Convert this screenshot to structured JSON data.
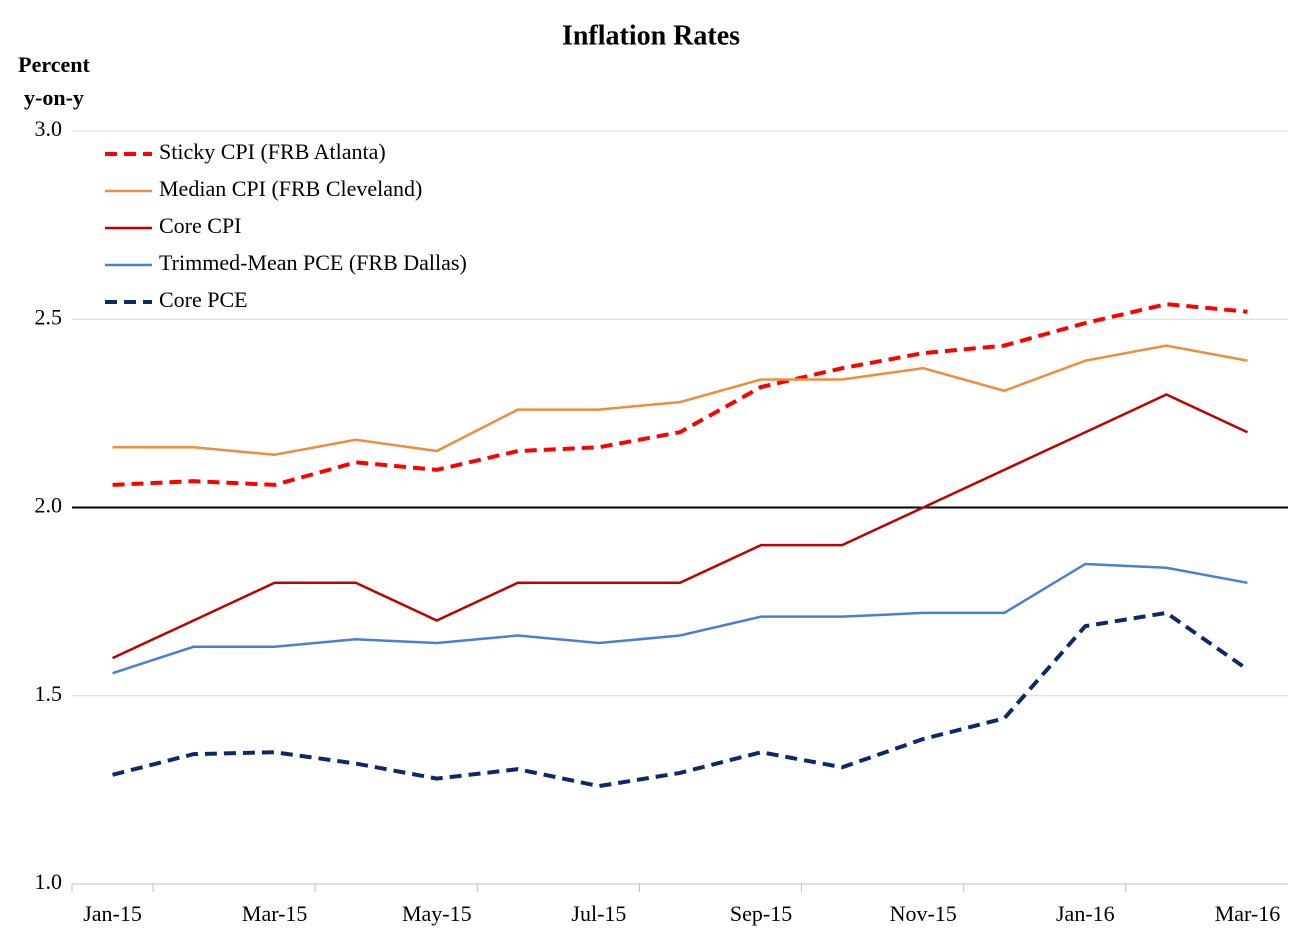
{
  "chart_data": {
    "type": "line",
    "title": "Inflation Rates",
    "y_label": [
      "Percent",
      "y-on-y"
    ],
    "categories": [
      "Jan-15",
      null,
      "Mar-15",
      null,
      "May-15",
      null,
      "Jul-15",
      null,
      "Sep-15",
      null,
      "Nov-15",
      null,
      "Jan-16",
      null,
      "Mar-16"
    ],
    "series": [
      {
        "name": "Sticky CPI (FRB Atlanta)",
        "color": "#ff0000",
        "dashed": true,
        "values": [
          2.06,
          2.07,
          2.06,
          2.12,
          2.1,
          2.15,
          2.16,
          2.2,
          2.32,
          2.37,
          2.41,
          2.43,
          2.49,
          2.54,
          2.52
        ]
      },
      {
        "name": "Median CPI (FRB Cleveland)",
        "color": "#ed8d3e",
        "dashed": false,
        "values": [
          2.16,
          2.16,
          2.14,
          2.18,
          2.15,
          2.26,
          2.26,
          2.28,
          2.34,
          2.34,
          2.37,
          2.31,
          2.39,
          2.43,
          2.39
        ]
      },
      {
        "name": "Core CPI",
        "color": "#c00000",
        "dashed": false,
        "values": [
          1.6,
          1.7,
          1.8,
          1.8,
          1.7,
          1.8,
          1.8,
          1.8,
          1.9,
          1.9,
          2.0,
          2.1,
          2.2,
          2.3,
          2.2
        ]
      },
      {
        "name": "Trimmed-Mean PCE (FRB Dallas)",
        "color": "#4a7fd4",
        "dashed": false,
        "values": [
          1.56,
          1.63,
          1.63,
          1.65,
          1.64,
          1.66,
          1.64,
          1.66,
          1.71,
          1.71,
          1.72,
          1.72,
          1.85,
          1.84,
          1.8
        ]
      },
      {
        "name": "Core PCE",
        "color": "#0d2a66",
        "dashed": true,
        "values": [
          1.29,
          1.345,
          1.35,
          1.32,
          1.28,
          1.305,
          1.26,
          1.295,
          1.35,
          1.31,
          1.385,
          1.44,
          1.685,
          1.72,
          1.57
        ]
      }
    ],
    "ylim": [
      1.0,
      3.0
    ],
    "yticks": [
      {
        "value": 1.0,
        "label": "1.0"
      },
      {
        "value": 1.5,
        "label": "1.5"
      },
      {
        "value": 2.0,
        "label": "2.0"
      },
      {
        "value": 2.5,
        "label": "2.5"
      },
      {
        "value": 3.0,
        "label": "3.0"
      }
    ],
    "reference_line": 2,
    "grid": true,
    "legend": "upper left"
  }
}
